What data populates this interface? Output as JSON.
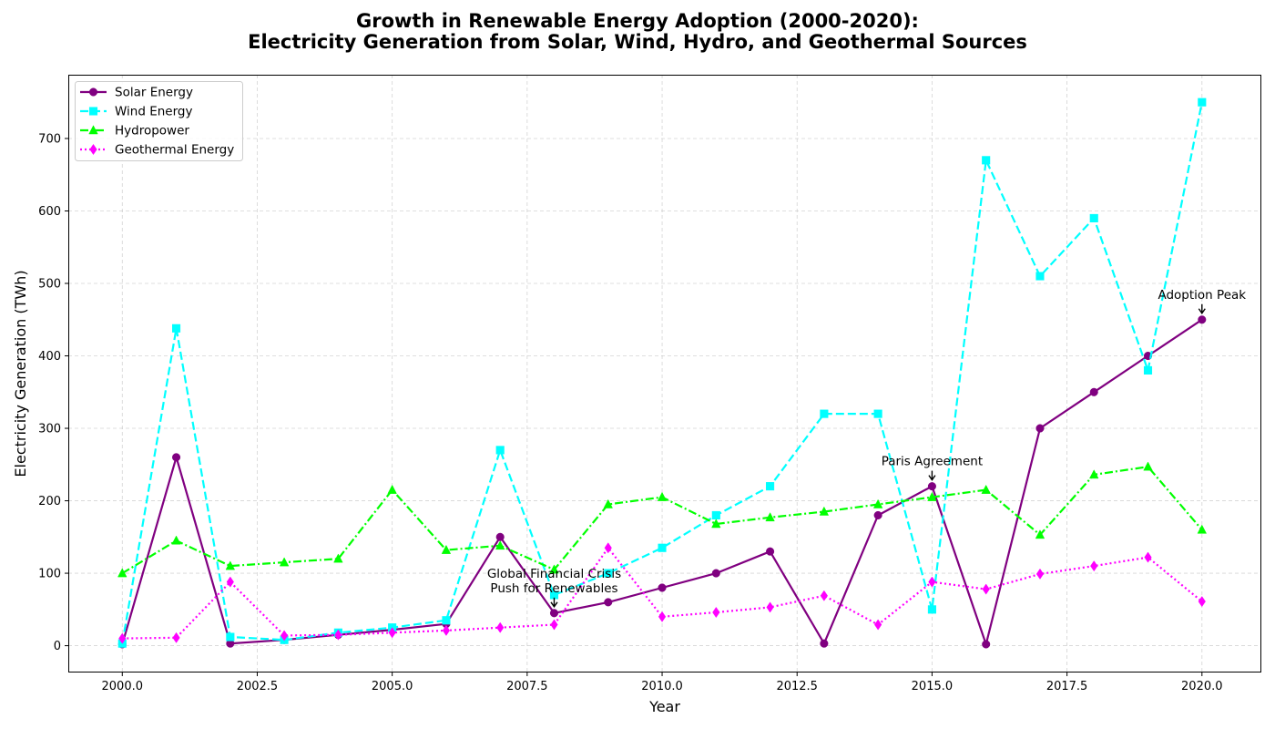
{
  "chart_data": {
    "type": "line",
    "title": "Growth in Renewable Energy Adoption (2000-2020):",
    "subtitle": "Electricity Generation from Solar, Wind, Hydro, and Geothermal Sources",
    "xlabel": "Year",
    "ylabel": "Electricity Generation (TWh)",
    "xlim": [
      1999,
      2021.1
    ],
    "ylim": [
      -37,
      788
    ],
    "xticks": [
      2000,
      2002.5,
      2005,
      2007.5,
      2010,
      2012.5,
      2015,
      2017.5,
      2020
    ],
    "xtick_labels": [
      "2000.0",
      "2002.5",
      "2005.0",
      "2007.5",
      "2010.0",
      "2012.5",
      "2015.0",
      "2017.5",
      "2020.0"
    ],
    "yticks": [
      0,
      100,
      200,
      300,
      400,
      500,
      600,
      700
    ],
    "grid": true,
    "legend": "top-left",
    "x": [
      2000,
      2001,
      2002,
      2003,
      2004,
      2005,
      2006,
      2007,
      2008,
      2009,
      2010,
      2011,
      2012,
      2013,
      2014,
      2015,
      2016,
      2017,
      2018,
      2019,
      2020
    ],
    "series": [
      {
        "name": "Solar Energy",
        "color": "#800080",
        "marker": "circle",
        "dash": "solid",
        "values": [
          2,
          260,
          3,
          8,
          15,
          22,
          30,
          150,
          45,
          60,
          80,
          100,
          130,
          3,
          180,
          220,
          2,
          300,
          350,
          400,
          450
        ]
      },
      {
        "name": "Wind Energy",
        "color": "#00ffff",
        "marker": "square",
        "dash": "dashed",
        "values": [
          3,
          438,
          12,
          8,
          18,
          25,
          35,
          270,
          70,
          100,
          135,
          180,
          220,
          320,
          320,
          50,
          670,
          510,
          590,
          380,
          750
        ]
      },
      {
        "name": "Hydropower",
        "color": "#00ff00",
        "marker": "triangle",
        "dash": "dashdot",
        "values": [
          100,
          145,
          110,
          115,
          120,
          215,
          132,
          138,
          105,
          195,
          205,
          168,
          177,
          185,
          195,
          205,
          215,
          153,
          236,
          247,
          160
        ]
      },
      {
        "name": "Geothermal Energy",
        "color": "#ff00ff",
        "marker": "diamond",
        "dash": "dotted",
        "values": [
          10,
          11,
          88,
          14,
          15,
          18,
          21,
          25,
          29,
          135,
          40,
          46,
          53,
          69,
          29,
          88,
          78,
          99,
          110,
          122,
          61
        ]
      }
    ],
    "annotations": [
      {
        "lines": [
          "Global Financial Crisis",
          "Push for Renewables"
        ],
        "x": 2008,
        "y": 45
      },
      {
        "lines": [
          "Paris Agreement"
        ],
        "x": 2015,
        "y": 220
      },
      {
        "lines": [
          "Adoption Peak"
        ],
        "x": 2020,
        "y": 450
      }
    ]
  }
}
